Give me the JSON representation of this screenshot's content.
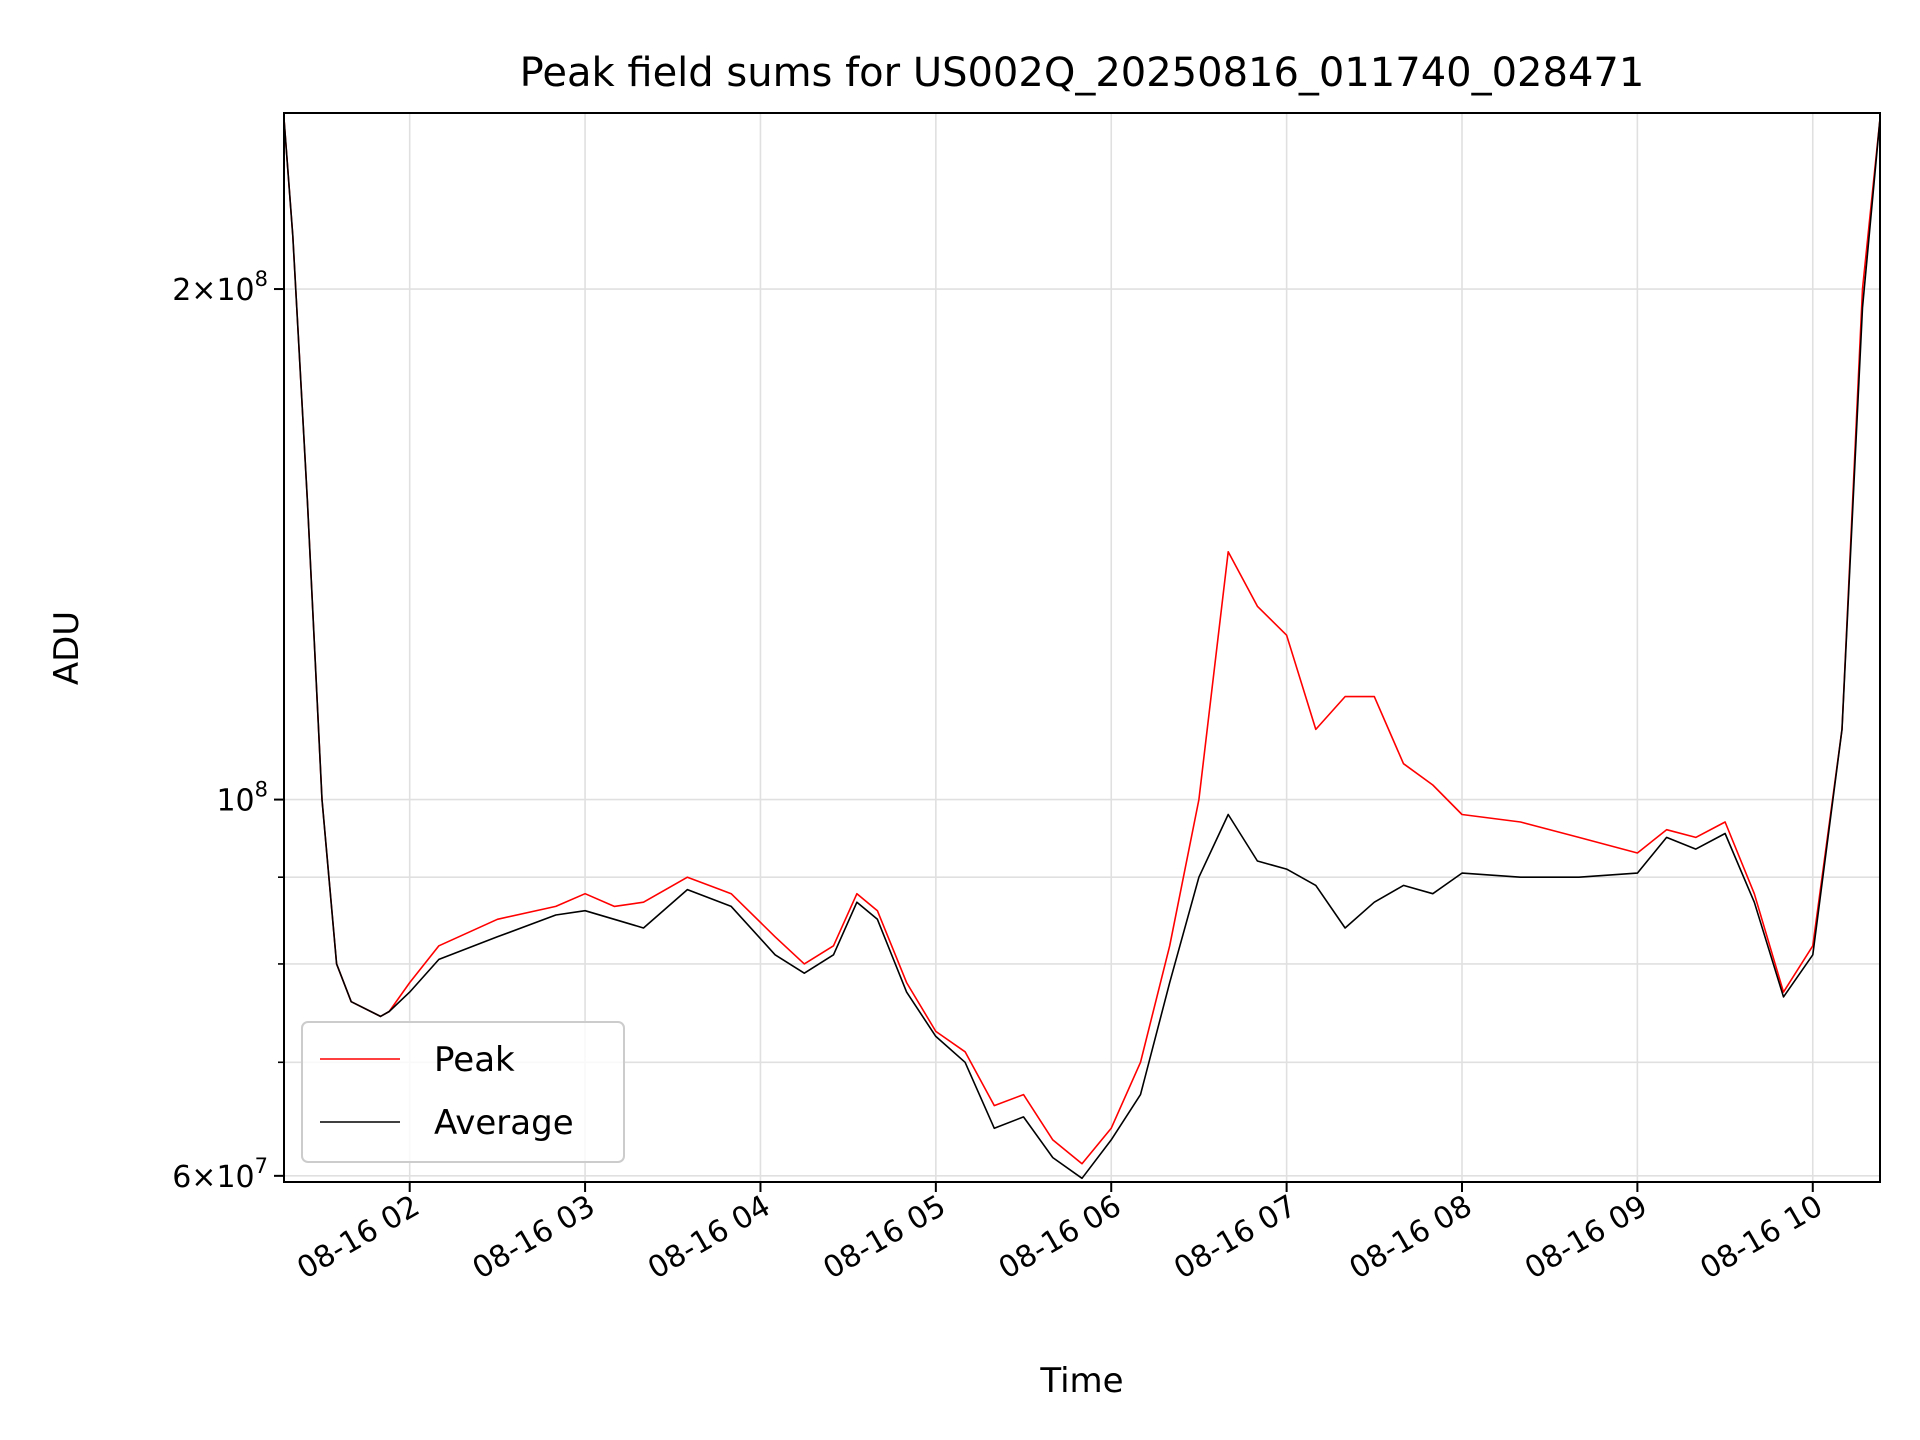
{
  "chart_data": {
    "type": "line",
    "title": "Peak field sums for US002Q_20250816_011740_028471",
    "xlabel": "Time",
    "ylabel": "ADU",
    "yscale": "log",
    "grid": true,
    "legend_position": "lower-left",
    "xlim": [
      "2025-08-16 01:17",
      "2025-08-16 10:23"
    ],
    "ylim": [
      59500000,
      254000000
    ],
    "x_ticks": [
      {
        "value": "2025-08-16 02:00",
        "label": "08-16 02"
      },
      {
        "value": "2025-08-16 03:00",
        "label": "08-16 03"
      },
      {
        "value": "2025-08-16 04:00",
        "label": "08-16 04"
      },
      {
        "value": "2025-08-16 05:00",
        "label": "08-16 05"
      },
      {
        "value": "2025-08-16 06:00",
        "label": "08-16 06"
      },
      {
        "value": "2025-08-16 07:00",
        "label": "08-16 07"
      },
      {
        "value": "2025-08-16 08:00",
        "label": "08-16 08"
      },
      {
        "value": "2025-08-16 09:00",
        "label": "08-16 09"
      },
      {
        "value": "2025-08-16 10:00",
        "label": "08-16 10"
      }
    ],
    "y_ticks_major": [
      {
        "value": 60000000,
        "label_base": "6×10",
        "label_exp": "7"
      },
      {
        "value": 100000000,
        "label_base": "10",
        "label_exp": "8"
      },
      {
        "value": 200000000,
        "label_base": "2×10",
        "label_exp": "8"
      }
    ],
    "y_ticks_minor": [
      70000000,
      80000000,
      90000000
    ],
    "series": [
      {
        "name": "Peak",
        "color": "#ff0000",
        "x": [
          "2025-08-16 01:17",
          "2025-08-16 01:20",
          "2025-08-16 01:25",
          "2025-08-16 01:30",
          "2025-08-16 01:35",
          "2025-08-16 01:40",
          "2025-08-16 01:50",
          "2025-08-16 01:53",
          "2025-08-16 02:00",
          "2025-08-16 02:10",
          "2025-08-16 02:30",
          "2025-08-16 02:50",
          "2025-08-16 03:00",
          "2025-08-16 03:10",
          "2025-08-16 03:20",
          "2025-08-16 03:35",
          "2025-08-16 03:50",
          "2025-08-16 04:05",
          "2025-08-16 04:15",
          "2025-08-16 04:25",
          "2025-08-16 04:33",
          "2025-08-16 04:40",
          "2025-08-16 04:50",
          "2025-08-16 05:00",
          "2025-08-16 05:10",
          "2025-08-16 05:20",
          "2025-08-16 05:30",
          "2025-08-16 05:40",
          "2025-08-16 05:50",
          "2025-08-16 06:00",
          "2025-08-16 06:10",
          "2025-08-16 06:20",
          "2025-08-16 06:30",
          "2025-08-16 06:40",
          "2025-08-16 06:50",
          "2025-08-16 07:00",
          "2025-08-16 07:10",
          "2025-08-16 07:20",
          "2025-08-16 07:30",
          "2025-08-16 07:40",
          "2025-08-16 07:50",
          "2025-08-16 08:00",
          "2025-08-16 08:20",
          "2025-08-16 08:40",
          "2025-08-16 09:00",
          "2025-08-16 09:10",
          "2025-08-16 09:20",
          "2025-08-16 09:30",
          "2025-08-16 09:40",
          "2025-08-16 09:50",
          "2025-08-16 10:00",
          "2025-08-16 10:10",
          "2025-08-16 10:17",
          "2025-08-16 10:23"
        ],
        "values": [
          252000000,
          215000000,
          150000000,
          100000000,
          80000000,
          76000000,
          74500000,
          75000000,
          78000000,
          82000000,
          85000000,
          86500000,
          88000000,
          86500000,
          87000000,
          90000000,
          88000000,
          83000000,
          80000000,
          82000000,
          88000000,
          86000000,
          78000000,
          73000000,
          71000000,
          66000000,
          67000000,
          63000000,
          61000000,
          64000000,
          70000000,
          82000000,
          100000000,
          140000000,
          130000000,
          125000000,
          110000000,
          115000000,
          115000000,
          105000000,
          102000000,
          98000000,
          97000000,
          95000000,
          93000000,
          96000000,
          95000000,
          97000000,
          88000000,
          77000000,
          82000000,
          110000000,
          200000000,
          252000000
        ]
      },
      {
        "name": "Average",
        "color": "#000000",
        "x": [
          "2025-08-16 01:17",
          "2025-08-16 01:20",
          "2025-08-16 01:25",
          "2025-08-16 01:30",
          "2025-08-16 01:35",
          "2025-08-16 01:40",
          "2025-08-16 01:50",
          "2025-08-16 01:53",
          "2025-08-16 02:00",
          "2025-08-16 02:10",
          "2025-08-16 02:30",
          "2025-08-16 02:50",
          "2025-08-16 03:00",
          "2025-08-16 03:10",
          "2025-08-16 03:20",
          "2025-08-16 03:35",
          "2025-08-16 03:50",
          "2025-08-16 04:05",
          "2025-08-16 04:15",
          "2025-08-16 04:25",
          "2025-08-16 04:33",
          "2025-08-16 04:40",
          "2025-08-16 04:50",
          "2025-08-16 05:00",
          "2025-08-16 05:10",
          "2025-08-16 05:20",
          "2025-08-16 05:30",
          "2025-08-16 05:40",
          "2025-08-16 05:50",
          "2025-08-16 06:00",
          "2025-08-16 06:10",
          "2025-08-16 06:20",
          "2025-08-16 06:30",
          "2025-08-16 06:40",
          "2025-08-16 06:50",
          "2025-08-16 07:00",
          "2025-08-16 07:10",
          "2025-08-16 07:20",
          "2025-08-16 07:30",
          "2025-08-16 07:40",
          "2025-08-16 07:50",
          "2025-08-16 08:00",
          "2025-08-16 08:20",
          "2025-08-16 08:40",
          "2025-08-16 09:00",
          "2025-08-16 09:10",
          "2025-08-16 09:20",
          "2025-08-16 09:30",
          "2025-08-16 09:40",
          "2025-08-16 09:50",
          "2025-08-16 10:00",
          "2025-08-16 10:10",
          "2025-08-16 10:17",
          "2025-08-16 10:23"
        ],
        "values": [
          252000000,
          215000000,
          150000000,
          100000000,
          80000000,
          76000000,
          74500000,
          75000000,
          77000000,
          80500000,
          83000000,
          85500000,
          86000000,
          85000000,
          84000000,
          88500000,
          86500000,
          81000000,
          79000000,
          81000000,
          87000000,
          85000000,
          77000000,
          72500000,
          70000000,
          64000000,
          65000000,
          61500000,
          59800000,
          63000000,
          67000000,
          78000000,
          90000000,
          98000000,
          92000000,
          91000000,
          89000000,
          84000000,
          87000000,
          89000000,
          88000000,
          90500000,
          90000000,
          90000000,
          90500000,
          95000000,
          93500000,
          95500000,
          87000000,
          76500000,
          81000000,
          110000000,
          195000000,
          252000000
        ]
      }
    ]
  }
}
